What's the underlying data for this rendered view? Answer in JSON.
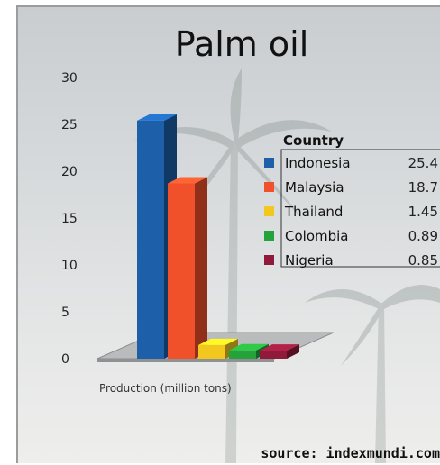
{
  "chart_data": {
    "type": "bar",
    "title": "Palm oil",
    "xlabel": "Production (million tons)",
    "ylabel": "",
    "ylim": [
      0,
      30
    ],
    "yticks": [
      0,
      5,
      10,
      15,
      20,
      25,
      30
    ],
    "legend_title": "Country",
    "legend_position": "right",
    "categories": [
      "Indonesia",
      "Malaysia",
      "Thailand",
      "Colombia",
      "Nigeria"
    ],
    "values": [
      25.4,
      18.7,
      1.45,
      0.89,
      0.85
    ],
    "value_labels": [
      "25.4",
      "18.7",
      "1.45",
      "0.89",
      "0.85"
    ],
    "colors": [
      "#1d5fa8",
      "#f0502a",
      "#f2c81e",
      "#25a23a",
      "#8f1a3a"
    ]
  },
  "source": "source: indexmundi.com"
}
